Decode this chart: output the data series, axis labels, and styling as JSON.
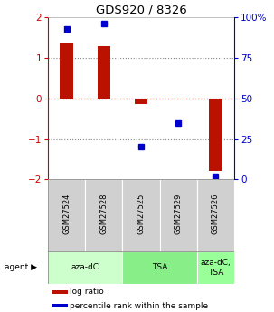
{
  "title": "GDS920 / 8326",
  "samples": [
    "GSM27524",
    "GSM27528",
    "GSM27525",
    "GSM27529",
    "GSM27526"
  ],
  "log_ratios": [
    1.35,
    1.28,
    -0.13,
    0.0,
    -1.78
  ],
  "percentile_ranks": [
    93,
    96,
    20,
    35,
    2
  ],
  "bar_color": "#bb1100",
  "dot_color": "#0000cc",
  "ylim": [
    -2,
    2
  ],
  "yticks_left": [
    -2,
    -1,
    0,
    1,
    2
  ],
  "yticks_right": [
    0,
    25,
    50,
    75,
    100
  ],
  "agent_groups": [
    {
      "label": "aza-dC",
      "span": [
        0,
        2
      ],
      "color": "#ccffcc"
    },
    {
      "label": "TSA",
      "span": [
        2,
        4
      ],
      "color": "#88ee88"
    },
    {
      "label": "aza-dC,\nTSA",
      "span": [
        4,
        5
      ],
      "color": "#99ff99"
    }
  ],
  "legend_items": [
    {
      "color": "#bb1100",
      "label": "log ratio"
    },
    {
      "color": "#0000cc",
      "label": "percentile rank within the sample"
    }
  ],
  "background_color": "#ffffff",
  "bar_width": 0.35
}
